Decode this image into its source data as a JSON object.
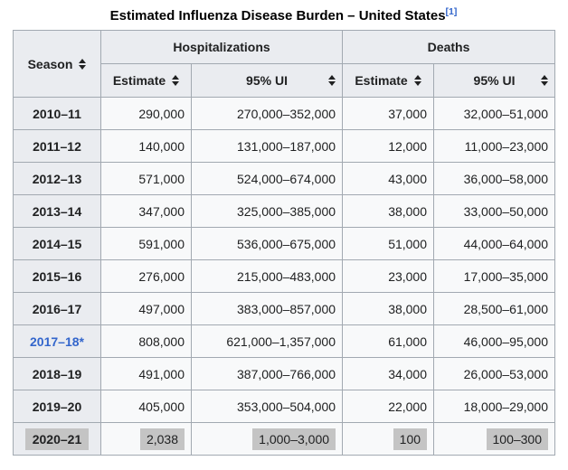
{
  "title": {
    "text": "Estimated Influenza Disease Burden – United States",
    "reference": "[1]"
  },
  "table": {
    "group_headers": {
      "hospitalizations": "Hospitalizations",
      "deaths": "Deaths"
    },
    "column_headers": {
      "season": "Season",
      "estimate": "Estimate",
      "ui": "95% UI"
    },
    "rows": [
      {
        "season": "2010–11",
        "hosp_estimate": "290,000",
        "hosp_ui": "270,000–352,000",
        "deaths_estimate": "37,000",
        "deaths_ui": "32,000–51,000",
        "link": false,
        "highlight": false
      },
      {
        "season": "2011–12",
        "hosp_estimate": "140,000",
        "hosp_ui": "131,000–187,000",
        "deaths_estimate": "12,000",
        "deaths_ui": "11,000–23,000",
        "link": false,
        "highlight": false
      },
      {
        "season": "2012–13",
        "hosp_estimate": "571,000",
        "hosp_ui": "524,000–674,000",
        "deaths_estimate": "43,000",
        "deaths_ui": "36,000–58,000",
        "link": false,
        "highlight": false
      },
      {
        "season": "2013–14",
        "hosp_estimate": "347,000",
        "hosp_ui": "325,000–385,000",
        "deaths_estimate": "38,000",
        "deaths_ui": "33,000–50,000",
        "link": false,
        "highlight": false
      },
      {
        "season": "2014–15",
        "hosp_estimate": "591,000",
        "hosp_ui": "536,000–675,000",
        "deaths_estimate": "51,000",
        "deaths_ui": "44,000–64,000",
        "link": false,
        "highlight": false
      },
      {
        "season": "2015–16",
        "hosp_estimate": "276,000",
        "hosp_ui": "215,000–483,000",
        "deaths_estimate": "23,000",
        "deaths_ui": "17,000–35,000",
        "link": false,
        "highlight": false
      },
      {
        "season": "2016–17",
        "hosp_estimate": "497,000",
        "hosp_ui": "383,000–857,000",
        "deaths_estimate": "38,000",
        "deaths_ui": "28,500–61,000",
        "link": false,
        "highlight": false
      },
      {
        "season": "2017–18*",
        "hosp_estimate": "808,000",
        "hosp_ui": "621,000–1,357,000",
        "deaths_estimate": "61,000",
        "deaths_ui": "46,000–95,000",
        "link": true,
        "highlight": false
      },
      {
        "season": "2018–19",
        "hosp_estimate": "491,000",
        "hosp_ui": "387,000–766,000",
        "deaths_estimate": "34,000",
        "deaths_ui": "26,000–53,000",
        "link": false,
        "highlight": false
      },
      {
        "season": "2019–20",
        "hosp_estimate": "405,000",
        "hosp_ui": "353,000–504,000",
        "deaths_estimate": "22,000",
        "deaths_ui": "18,000–29,000",
        "link": false,
        "highlight": false
      },
      {
        "season": "2020–21",
        "hosp_estimate": "2,038",
        "hosp_ui": "1,000–3,000",
        "deaths_estimate": "100",
        "deaths_ui": "100–300",
        "link": false,
        "highlight": true
      }
    ]
  },
  "colors": {
    "border": "#a2a9b1",
    "header_bg": "#eaecf0",
    "cell_bg": "#f8f9fa",
    "text": "#202122",
    "link": "#3366cc",
    "highlight_bg": "#c4c4c4"
  }
}
